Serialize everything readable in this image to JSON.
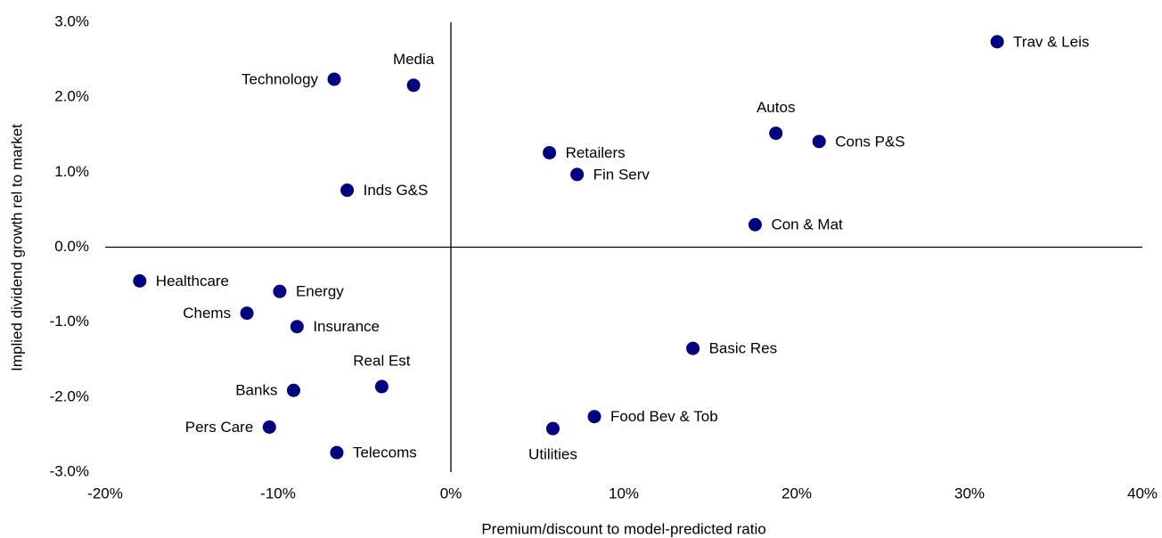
{
  "chart_data": {
    "type": "scatter",
    "x_label": "Premium/discount to model-predicted ratio",
    "y_label": "Implied dividend growth rel to market",
    "color": "#000080",
    "xlim": [
      -20,
      40
    ],
    "ylim": [
      -3,
      3
    ],
    "xticks": [
      {
        "value": -20,
        "label": "-20%"
      },
      {
        "value": -10,
        "label": "-10%"
      },
      {
        "value": 0,
        "label": "0%"
      },
      {
        "value": 10,
        "label": "10%"
      },
      {
        "value": 20,
        "label": "20%"
      },
      {
        "value": 30,
        "label": "30%"
      },
      {
        "value": 40,
        "label": "40%"
      }
    ],
    "yticks": [
      {
        "value": 3,
        "label": "3.0%"
      },
      {
        "value": 2,
        "label": "2.0%"
      },
      {
        "value": 1,
        "label": "1.0%"
      },
      {
        "value": 0,
        "label": "0.0%"
      },
      {
        "value": -1,
        "label": "-1.0%"
      },
      {
        "value": -2,
        "label": "-2.0%"
      },
      {
        "value": -3,
        "label": "-3.0%"
      }
    ],
    "points": [
      {
        "label": "Trav & Leis",
        "x": 31.6,
        "y": 2.74
      },
      {
        "label": "Technology",
        "x": -6.75,
        "y": 2.24
      },
      {
        "label": "Media",
        "x": -2.16,
        "y": 2.16
      },
      {
        "label": "Autos",
        "x": 18.8,
        "y": 1.52
      },
      {
        "label": "Cons P&S",
        "x": 21.3,
        "y": 1.41
      },
      {
        "label": "Retailers",
        "x": 5.7,
        "y": 1.26
      },
      {
        "label": "Fin Serv",
        "x": 7.3,
        "y": 0.97
      },
      {
        "label": "Inds G&S",
        "x": -6.0,
        "y": 0.76
      },
      {
        "label": "Con & Mat",
        "x": 17.6,
        "y": 0.3
      },
      {
        "label": "Healthcare",
        "x": -18.0,
        "y": -0.45
      },
      {
        "label": "Energy",
        "x": -9.9,
        "y": -0.59
      },
      {
        "label": "Chems",
        "x": -11.8,
        "y": -0.88
      },
      {
        "label": "Insurance",
        "x": -8.9,
        "y": -1.06
      },
      {
        "label": "Basic Res",
        "x": 14.0,
        "y": -1.35
      },
      {
        "label": "Real Est",
        "x": -4.0,
        "y": -1.86
      },
      {
        "label": "Banks",
        "x": -9.1,
        "y": -1.91
      },
      {
        "label": "Food Bev & Tob",
        "x": 8.3,
        "y": -2.26
      },
      {
        "label": "Pers Care",
        "x": -10.5,
        "y": -2.4
      },
      {
        "label": "Utilities",
        "x": 5.9,
        "y": -2.42
      },
      {
        "label": "Telecoms",
        "x": -6.6,
        "y": -2.74
      }
    ]
  }
}
